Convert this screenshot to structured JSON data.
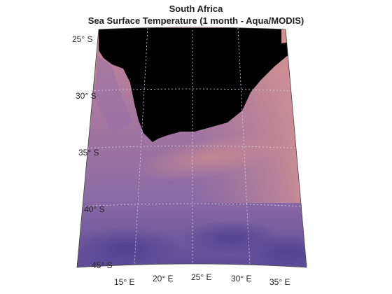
{
  "title": "South Africa",
  "subtitle": "Sea Surface Temperature (1 month - Aqua/MODIS)",
  "lat_labels": [
    "25° S",
    "30° S",
    "35° S",
    "40° S",
    "45° S"
  ],
  "lon_labels": [
    "15° E",
    "20° E",
    "25° E",
    "30° E",
    "35° E"
  ],
  "map": {
    "lat_range": [
      -45,
      -25
    ],
    "lon_range": [
      15,
      35
    ],
    "land_color": "#000000",
    "ocean_warm_color": "#d08c8a",
    "ocean_mid_color": "#9a70a8",
    "ocean_cool_color": "#4c3f8a",
    "gridline_color": "#d9d9e6"
  },
  "colors": {
    "text": "#262626"
  }
}
